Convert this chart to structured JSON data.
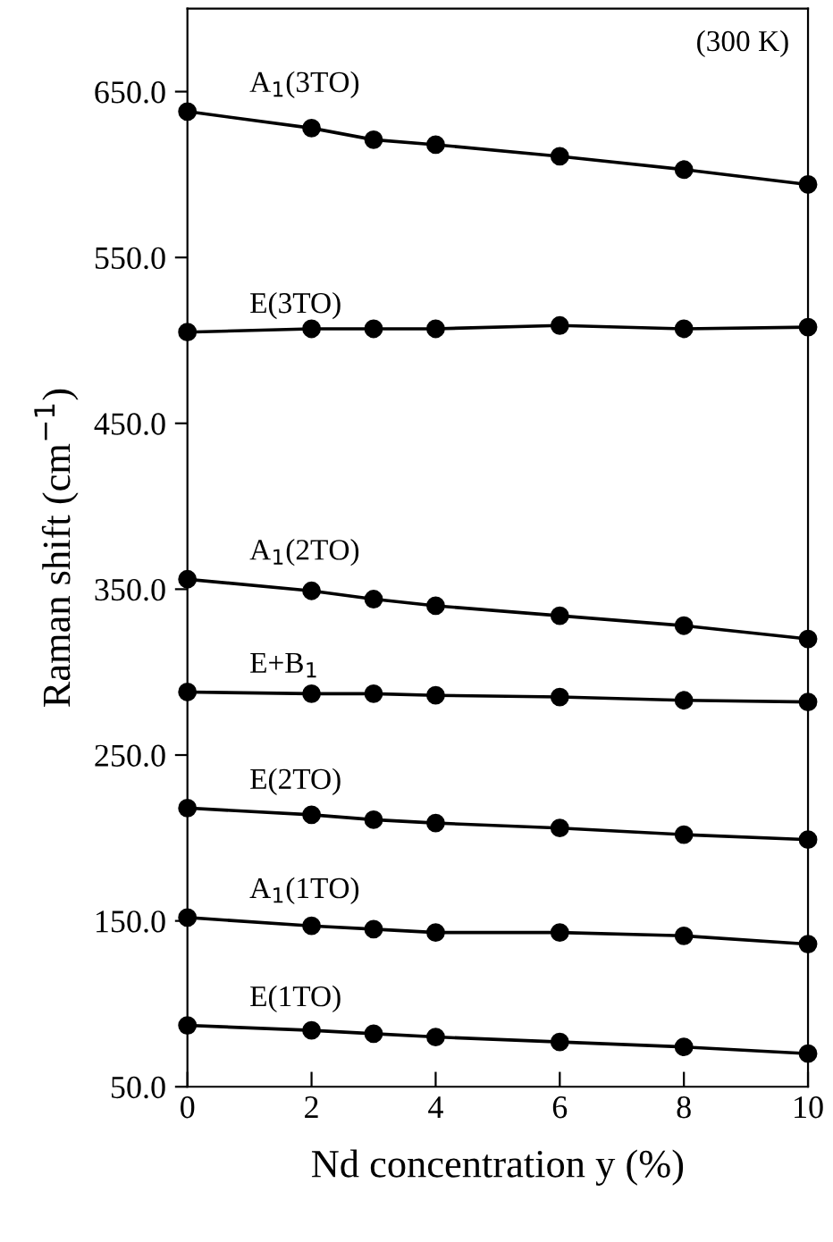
{
  "chart_data": {
    "type": "line",
    "xlabel": "Nd concentration y (%)",
    "ylabel": "Raman shift (cm$^{−1}$)",
    "annotations": [
      "(300 K)"
    ],
    "x": [
      0,
      2,
      3,
      4,
      6,
      8,
      10
    ],
    "marker": "circle",
    "line_style": "solid",
    "grid": false,
    "legend": false,
    "xlim": [
      0,
      10
    ],
    "xticks": [
      0,
      2,
      4,
      6,
      8,
      10
    ],
    "ylim": [
      50,
      700
    ],
    "yticks": [
      {
        "value": 50,
        "label": "50.0"
      },
      {
        "value": 150,
        "label": "150.0"
      },
      {
        "value": 250,
        "label": "250.0"
      },
      {
        "value": 350,
        "label": "350.0"
      },
      {
        "value": 450,
        "label": "450.0"
      },
      {
        "value": 550,
        "label": "550.0"
      },
      {
        "value": 650,
        "label": "650.0"
      }
    ],
    "series": [
      {
        "name": "A$_{1}$(3TO)",
        "color": "#000000",
        "values": [
          638,
          628,
          621,
          618,
          611,
          603,
          594
        ]
      },
      {
        "name": "E(3TO)",
        "color": "#000000",
        "values": [
          505,
          507,
          507,
          507,
          509,
          507,
          508
        ]
      },
      {
        "name": "A$_{1}$(2TO)",
        "color": "#000000",
        "values": [
          356,
          349,
          344,
          340,
          334,
          328,
          320
        ]
      },
      {
        "name": "E+B$_{1}$",
        "color": "#000000",
        "values": [
          288,
          287,
          287,
          286,
          285,
          283,
          282
        ]
      },
      {
        "name": "E(2TO)",
        "color": "#000000",
        "values": [
          218,
          214,
          211,
          209,
          206,
          202,
          199
        ]
      },
      {
        "name": "A$_{1}$(1TO)",
        "color": "#000000",
        "values": [
          152,
          147,
          145,
          143,
          143,
          141,
          136
        ]
      },
      {
        "name": "E(1TO)",
        "color": "#000000",
        "values": [
          87,
          84,
          82,
          80,
          77,
          74,
          70
        ]
      }
    ]
  }
}
